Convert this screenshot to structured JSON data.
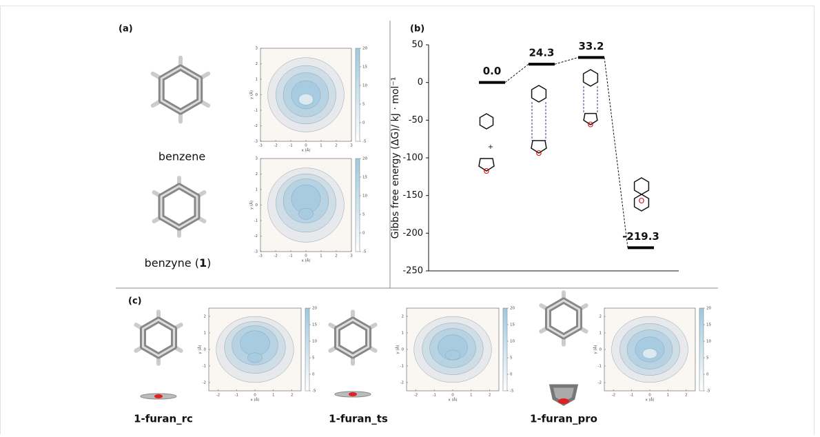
{
  "panels": {
    "a": "(a)",
    "b": "(b)",
    "c": "(c)"
  },
  "molecules": {
    "benzene": "benzene",
    "benzyne": {
      "text": "benzyne (",
      "number": "1",
      "close": ")"
    },
    "plus": "+",
    "oxygen": "O"
  },
  "complexes": [
    "1-furan_rc",
    "1-furan_ts",
    "1-furan_pro"
  ],
  "chart_data": [
    {
      "type": "level",
      "ylabel": "Gibbs free energy (ΔG)/ kJ · mol⁻¹",
      "categories": [
        null,
        null,
        null,
        null
      ],
      "values": [
        0.0,
        24.3,
        33.2,
        -219.3
      ],
      "value_labels": [
        "0.0",
        "24.3",
        "33.2",
        "-219.3"
      ],
      "color": "#000000",
      "ylim": [
        -250,
        50
      ],
      "yticks": [
        -250,
        -200,
        -150,
        -100,
        -50,
        0,
        50
      ]
    },
    {
      "type": "contour",
      "xlabel": "x (Å)",
      "ylabel": "y (Å)",
      "xlim": [
        -3,
        3
      ],
      "ylim": [
        -3,
        3
      ],
      "xticks": [
        -3,
        -2,
        -1,
        0,
        1,
        2,
        3
      ],
      "yticks": [
        -3,
        -2,
        -1,
        0,
        1,
        2,
        3
      ],
      "clim": [
        -5,
        20
      ],
      "cticks": [
        -5,
        0,
        5,
        10,
        15,
        20
      ]
    },
    {
      "type": "contour",
      "xlabel": "x (Å)",
      "ylabel": "y (Å)",
      "xlim": [
        -3,
        3
      ],
      "ylim": [
        -3,
        3
      ],
      "xticks": [
        -3,
        -2,
        -1,
        0,
        1,
        2,
        3
      ],
      "yticks": [
        -3,
        -2,
        -1,
        0,
        1,
        2,
        3
      ],
      "clim": [
        -5,
        20
      ],
      "cticks": [
        -5,
        0,
        5,
        10,
        15,
        20
      ]
    },
    {
      "type": "contour",
      "xlabel": "x (Å)",
      "ylabel": "y (Å)",
      "xlim": [
        -2.5,
        2.5
      ],
      "ylim": [
        -2.5,
        2.5
      ],
      "xticks": [
        -2,
        -1,
        0,
        1,
        2
      ],
      "yticks": [
        -2,
        -1,
        0,
        1,
        2
      ],
      "clim": [
        -5,
        20
      ],
      "cticks": [
        -5,
        0,
        5,
        10,
        15,
        20
      ]
    },
    {
      "type": "contour",
      "xlabel": "x (Å)",
      "ylabel": "y (Å)",
      "xlim": [
        -2.5,
        2.5
      ],
      "ylim": [
        -2.5,
        2.5
      ],
      "xticks": [
        -2,
        -1,
        0,
        1,
        2
      ],
      "yticks": [
        -2,
        -1,
        0,
        1,
        2
      ],
      "clim": [
        -5,
        20
      ],
      "cticks": [
        -5,
        0,
        5,
        10,
        15,
        20
      ]
    },
    {
      "type": "contour",
      "xlabel": "x (Å)",
      "ylabel": "y (Å)",
      "xlim": [
        -2.5,
        2.5
      ],
      "ylim": [
        -2.5,
        2.5
      ],
      "xticks": [
        -2,
        -1,
        0,
        1,
        2
      ],
      "yticks": [
        -2,
        -1,
        0,
        1,
        2
      ],
      "clim": [
        -5,
        20
      ],
      "cticks": [
        -5,
        0,
        5,
        10,
        15,
        20
      ]
    }
  ]
}
